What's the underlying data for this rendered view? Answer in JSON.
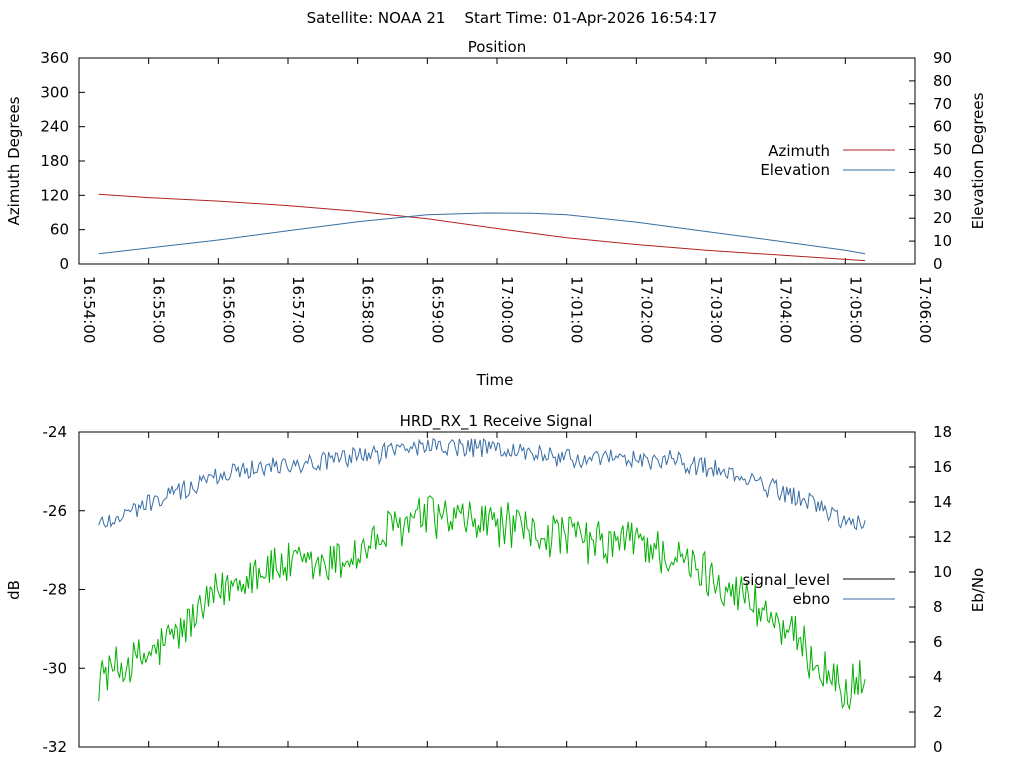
{
  "header": {
    "title": "Satellite: NOAA 21    Start Time: 01-Apr-2026 16:54:17"
  },
  "colors": {
    "azimuth": "#b22222",
    "elevation": "#3a6ea5",
    "signal_level": "#00b000",
    "ebno": "#3a6ea5"
  },
  "chart_data": [
    {
      "type": "line",
      "title": "Position",
      "xlabel": "Time",
      "ylabel": "Azimuth Degrees",
      "y2label": "Elevation Degrees",
      "xlim": [
        "16:54:00",
        "17:06:00"
      ],
      "ylim": [
        0,
        360
      ],
      "y2lim": [
        0,
        90
      ],
      "x_ticks": [
        "16:54:00",
        "16:55:00",
        "16:56:00",
        "16:57:00",
        "16:58:00",
        "16:59:00",
        "17:00:00",
        "17:01:00",
        "17:02:00",
        "17:03:00",
        "17:04:00",
        "17:05:00",
        "17:06:00"
      ],
      "y_ticks": [
        "0",
        "60",
        "120",
        "180",
        "240",
        "300",
        "360"
      ],
      "y2_ticks": [
        "0",
        "10",
        "20",
        "30",
        "40",
        "50",
        "60",
        "70",
        "80",
        "90"
      ],
      "legend": "right",
      "grid": false,
      "series": [
        {
          "name": "Azimuth",
          "axis": "y",
          "x": [
            "16:54:17",
            "16:55:00",
            "16:56:00",
            "16:57:00",
            "16:58:00",
            "16:59:00",
            "17:00:00",
            "17:01:00",
            "17:02:00",
            "17:03:00",
            "17:04:00",
            "17:05:00",
            "17:05:17"
          ],
          "values": [
            122,
            116,
            110,
            102,
            92,
            79,
            62,
            46,
            34,
            24,
            16,
            8,
            6
          ]
        },
        {
          "name": "Elevation",
          "axis": "y2",
          "x": [
            "16:54:17",
            "16:55:00",
            "16:56:00",
            "16:57:00",
            "16:58:00",
            "16:59:00",
            "16:59:50",
            "17:00:30",
            "17:01:00",
            "17:02:00",
            "17:03:00",
            "17:04:00",
            "17:05:00",
            "17:05:17"
          ],
          "values": [
            4.5,
            7,
            10.5,
            14.5,
            18.5,
            21.5,
            22.3,
            22.2,
            21.5,
            18.3,
            14.2,
            10.2,
            6,
            4.5
          ]
        }
      ]
    },
    {
      "type": "line",
      "title": "HRD_RX_1 Receive Signal",
      "xlabel": "",
      "ylabel": "dB",
      "y2label": "Eb/No",
      "xlim": [
        "16:54:00",
        "17:06:00"
      ],
      "ylim": [
        -32,
        -24
      ],
      "y2lim": [
        0,
        18
      ],
      "y_ticks": [
        "-32",
        "-30",
        "-28",
        "-26",
        "-24"
      ],
      "y2_ticks": [
        "0",
        "2",
        "4",
        "6",
        "8",
        "10",
        "12",
        "14",
        "16",
        "18"
      ],
      "x_tick_count": 13,
      "legend": "right",
      "grid": false,
      "series": [
        {
          "name": "signal_level",
          "axis": "y",
          "x": [
            "16:54:17",
            "16:55:00",
            "16:55:30",
            "16:56:00",
            "16:56:30",
            "16:57:00",
            "16:57:30",
            "16:58:00",
            "16:58:30",
            "16:59:00",
            "16:59:30",
            "17:00:00",
            "17:00:30",
            "17:01:00",
            "17:01:30",
            "17:02:00",
            "17:02:30",
            "17:03:00",
            "17:03:30",
            "17:04:00",
            "17:04:30",
            "17:05:00",
            "17:05:17"
          ],
          "values": [
            -30.2,
            -29.7,
            -29.0,
            -28.1,
            -27.5,
            -27.4,
            -27.4,
            -27.1,
            -26.5,
            -26.1,
            -26.3,
            -26.3,
            -26.6,
            -26.6,
            -26.9,
            -26.7,
            -27.2,
            -27.6,
            -28.1,
            -28.8,
            -29.7,
            -30.6,
            -30.3
          ]
        },
        {
          "name": "ebno",
          "axis": "y2",
          "x": [
            "16:54:17",
            "16:55:00",
            "16:55:30",
            "16:56:00",
            "16:56:30",
            "16:57:00",
            "16:57:30",
            "16:58:00",
            "16:58:30",
            "16:59:00",
            "16:59:30",
            "17:00:00",
            "17:00:30",
            "17:01:00",
            "17:01:30",
            "17:02:00",
            "17:02:30",
            "17:03:00",
            "17:03:30",
            "17:04:00",
            "17:04:30",
            "17:05:00",
            "17:05:17"
          ],
          "values": [
            12.7,
            13.9,
            14.7,
            15.5,
            16.0,
            16.2,
            16.3,
            16.6,
            17.0,
            17.2,
            17.1,
            17.0,
            16.8,
            16.5,
            16.4,
            16.4,
            16.4,
            16.0,
            15.4,
            14.7,
            14.0,
            12.9,
            12.6
          ]
        }
      ]
    }
  ]
}
